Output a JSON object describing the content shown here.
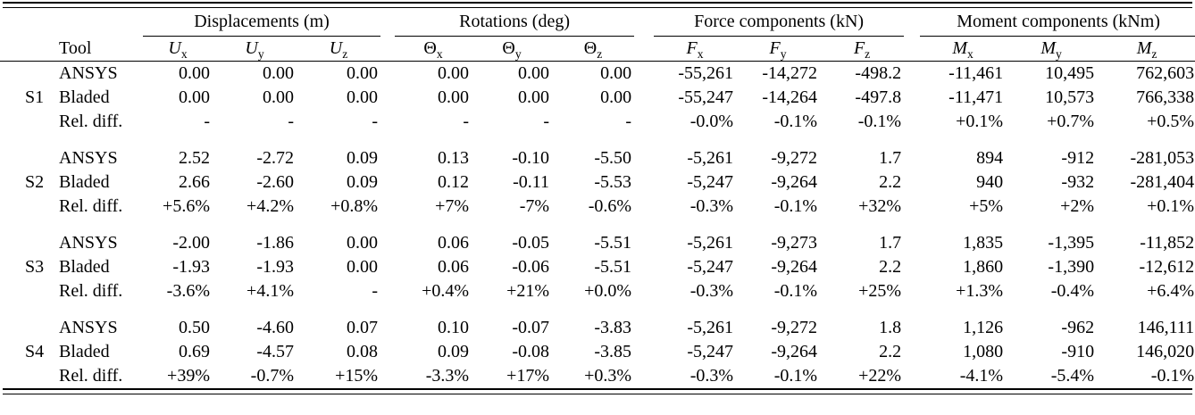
{
  "page": {
    "background": "#ffffff",
    "text_color": "#000000",
    "rule_color": "#000000"
  },
  "table": {
    "tool_header": "Tool",
    "groups": [
      {
        "label": "Displacements (m)",
        "columns": [
          {
            "base": "U",
            "sub": "x",
            "italic": true
          },
          {
            "base": "U",
            "sub": "y",
            "italic": true
          },
          {
            "base": "U",
            "sub": "z",
            "italic": true
          }
        ]
      },
      {
        "label": "Rotations (deg)",
        "columns": [
          {
            "base": "Θ",
            "sub": "x",
            "italic": false
          },
          {
            "base": "Θ",
            "sub": "y",
            "italic": false
          },
          {
            "base": "Θ",
            "sub": "z",
            "italic": false
          }
        ]
      },
      {
        "label": "Force components (kN)",
        "columns": [
          {
            "base": "F",
            "sub": "x",
            "italic": true
          },
          {
            "base": "F",
            "sub": "y",
            "italic": true
          },
          {
            "base": "F",
            "sub": "z",
            "italic": true
          }
        ]
      },
      {
        "label": "Moment components (kNm)",
        "columns": [
          {
            "base": "M",
            "sub": "x",
            "italic": true
          },
          {
            "base": "M",
            "sub": "y",
            "italic": true
          },
          {
            "base": "M",
            "sub": "z",
            "italic": true
          }
        ]
      }
    ],
    "sections": [
      {
        "id": "S1",
        "rows": [
          {
            "tool": "ANSYS",
            "values": [
              "0.00",
              "0.00",
              "0.00",
              "0.00",
              "0.00",
              "0.00",
              "-55,261",
              "-14,272",
              "-498.2",
              "-11,461",
              "10,495",
              "762,603"
            ]
          },
          {
            "tool": "Bladed",
            "values": [
              "0.00",
              "0.00",
              "0.00",
              "0.00",
              "0.00",
              "0.00",
              "-55,247",
              "-14,264",
              "-497.8",
              "-11,471",
              "10,573",
              "766,338"
            ]
          },
          {
            "tool": "Rel. diff.",
            "values": [
              "-",
              "-",
              "-",
              "-",
              "-",
              "-",
              "-0.0%",
              "-0.1%",
              "-0.1%",
              "+0.1%",
              "+0.7%",
              "+0.5%"
            ]
          }
        ]
      },
      {
        "id": "S2",
        "rows": [
          {
            "tool": "ANSYS",
            "values": [
              "2.52",
              "-2.72",
              "0.09",
              "0.13",
              "-0.10",
              "-5.50",
              "-5,261",
              "-9,272",
              "1.7",
              "894",
              "-912",
              "-281,053"
            ]
          },
          {
            "tool": "Bladed",
            "values": [
              "2.66",
              "-2.60",
              "0.09",
              "0.12",
              "-0.11",
              "-5.53",
              "-5,247",
              "-9,264",
              "2.2",
              "940",
              "-932",
              "-281,404"
            ]
          },
          {
            "tool": "Rel. diff.",
            "values": [
              "+5.6%",
              "+4.2%",
              "+0.8%",
              "+7%",
              "-7%",
              "-0.6%",
              "-0.3%",
              "-0.1%",
              "+32%",
              "+5%",
              "+2%",
              "+0.1%"
            ]
          }
        ]
      },
      {
        "id": "S3",
        "rows": [
          {
            "tool": "ANSYS",
            "values": [
              "-2.00",
              "-1.86",
              "0.00",
              "0.06",
              "-0.05",
              "-5.51",
              "-5,261",
              "-9,273",
              "1.7",
              "1,835",
              "-1,395",
              "-11,852"
            ]
          },
          {
            "tool": "Bladed",
            "values": [
              "-1.93",
              "-1.93",
              "0.00",
              "0.06",
              "-0.06",
              "-5.51",
              "-5,247",
              "-9,264",
              "2.2",
              "1,860",
              "-1,390",
              "-12,612"
            ]
          },
          {
            "tool": "Rel. diff.",
            "values": [
              "-3.6%",
              "+4.1%",
              "-",
              "+0.4%",
              "+21%",
              "+0.0%",
              "-0.3%",
              "-0.1%",
              "+25%",
              "+1.3%",
              "-0.4%",
              "+6.4%"
            ]
          }
        ]
      },
      {
        "id": "S4",
        "rows": [
          {
            "tool": "ANSYS",
            "values": [
              "0.50",
              "-4.60",
              "0.07",
              "0.10",
              "-0.07",
              "-3.83",
              "-5,261",
              "-9,272",
              "1.8",
              "1,126",
              "-962",
              "146,111"
            ]
          },
          {
            "tool": "Bladed",
            "values": [
              "0.69",
              "-4.57",
              "0.08",
              "0.09",
              "-0.08",
              "-3.85",
              "-5,247",
              "-9,264",
              "2.2",
              "1,080",
              "-910",
              "146,020"
            ]
          },
          {
            "tool": "Rel. diff.",
            "values": [
              "+39%",
              "-0.7%",
              "+15%",
              "-3.3%",
              "+17%",
              "+0.3%",
              "-0.3%",
              "-0.1%",
              "+22%",
              "-4.1%",
              "-5.4%",
              "-0.1%"
            ]
          }
        ]
      }
    ]
  }
}
